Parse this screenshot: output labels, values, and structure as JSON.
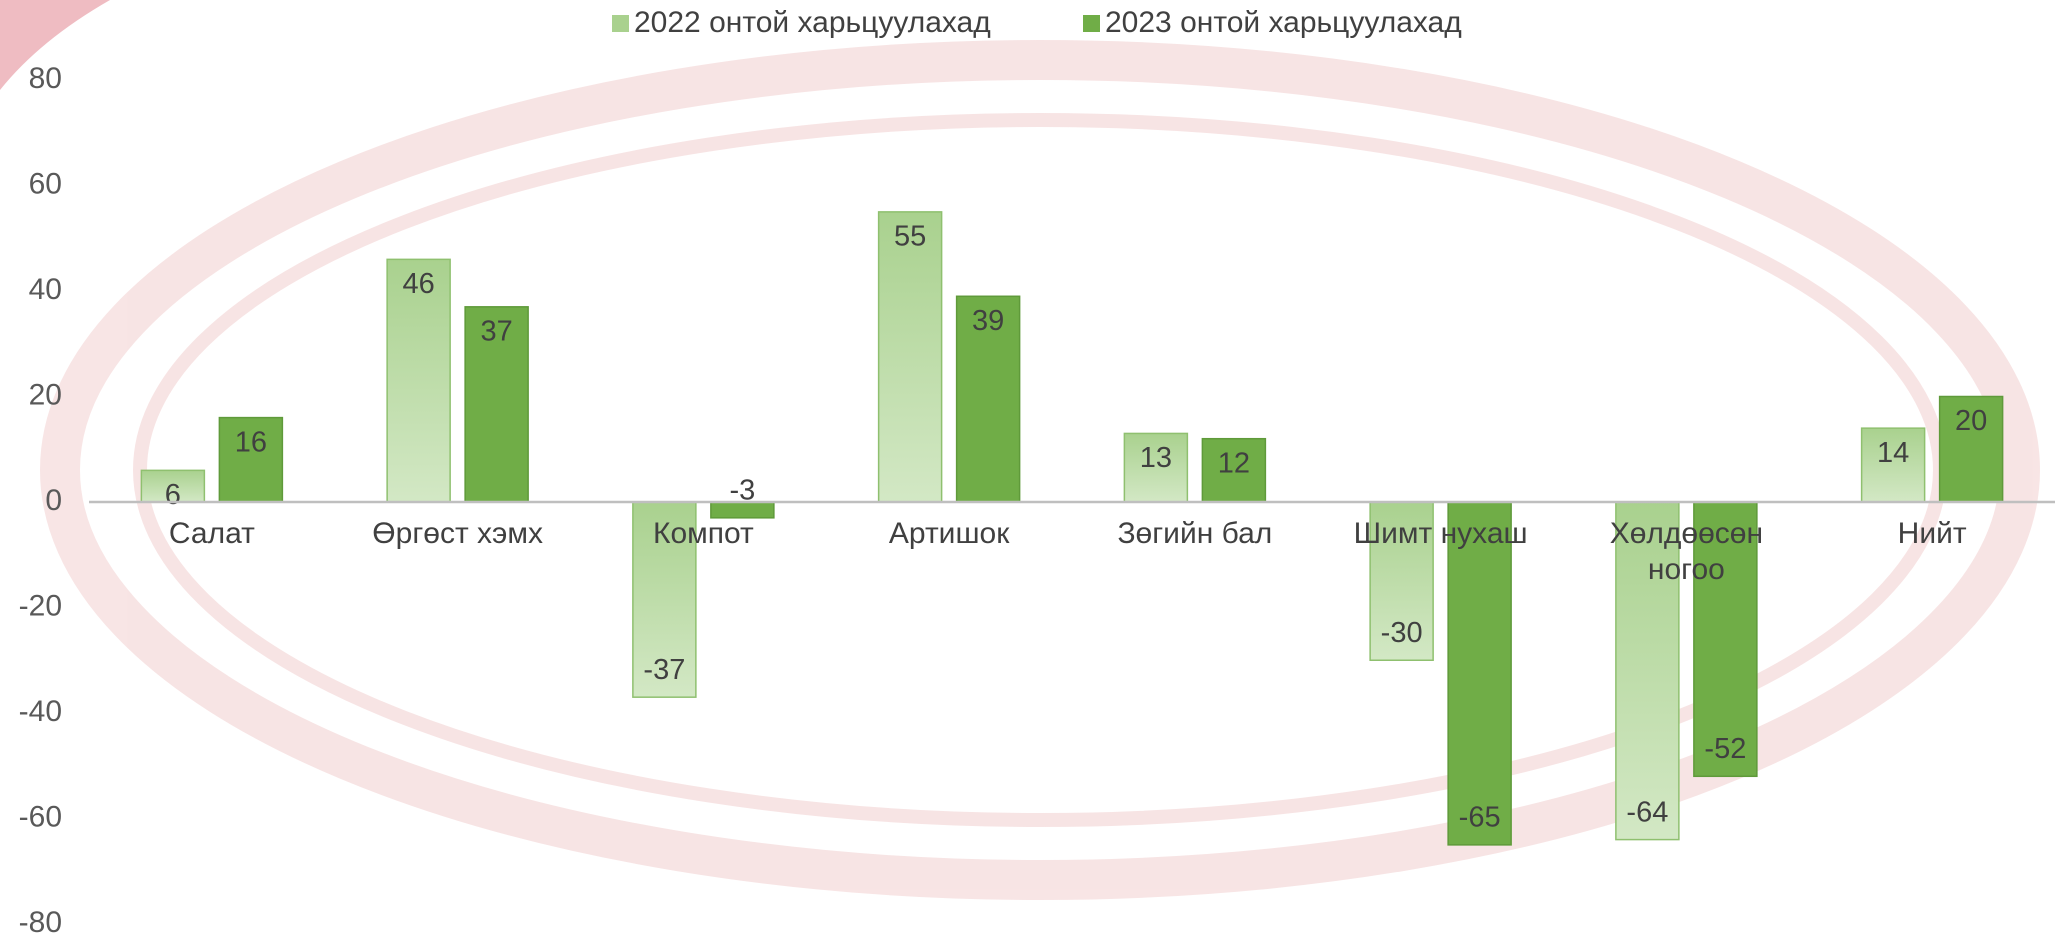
{
  "chart_data": {
    "type": "bar",
    "categories": [
      "Салат",
      "Өргөст хэмх",
      "Компот",
      "Артишок",
      "Зөгийн бал",
      "Шимт нухаш",
      "Хөлдөөсөн ногоо",
      "Нийт"
    ],
    "series": [
      {
        "name": "2022 онтой харьцуулахад",
        "color": "#a9d18e",
        "values": [
          6,
          46,
          -37,
          55,
          13,
          -30,
          -64,
          14
        ]
      },
      {
        "name": "2023 онтой харьцуулахад",
        "color": "#70ad47",
        "values": [
          16,
          37,
          -3,
          39,
          12,
          -65,
          -52,
          20
        ]
      }
    ],
    "ylim": [
      -80,
      80
    ],
    "yticks": [
      -80,
      -60,
      -40,
      -20,
      0,
      20,
      40,
      60,
      80
    ],
    "legend": "top"
  }
}
